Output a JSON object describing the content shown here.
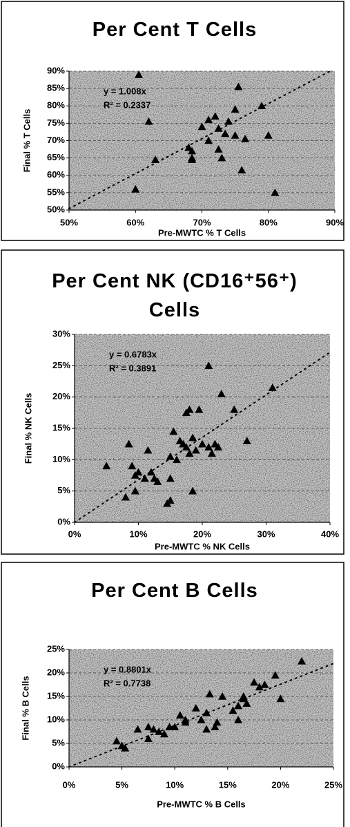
{
  "chart_data": [
    {
      "type": "scatter",
      "title": "Per Cent T Cells",
      "xlabel": "Pre-MWTC % T Cells",
      "ylabel": "Final % T Cells",
      "color": "#000000",
      "grid": true,
      "x": [
        60.5,
        62,
        63,
        60,
        68,
        68.5,
        68.5,
        68.5,
        70,
        71,
        71,
        72,
        72.5,
        72.5,
        73,
        73.5,
        74,
        75,
        75,
        75.5,
        76,
        76.5,
        79,
        80,
        81
      ],
      "values": [
        89,
        75.5,
        64.5,
        56,
        68,
        67,
        65,
        64.5,
        74,
        76,
        70,
        77,
        73.5,
        67.5,
        65,
        72,
        75.5,
        79,
        71.5,
        85.5,
        61.5,
        70.5,
        80,
        71.5,
        55
      ],
      "trendline": {
        "slope": 1.008,
        "label": "y = 1.008x",
        "r2_label": "R² = 0.2337"
      },
      "xlim": [
        50,
        90
      ],
      "ylim": [
        50,
        90
      ],
      "xticks": [
        {
          "value": 50,
          "label": "50%"
        },
        {
          "value": 60,
          "label": "60%"
        },
        {
          "value": 70,
          "label": "70%"
        },
        {
          "value": 80,
          "label": "80%"
        },
        {
          "value": 90,
          "label": "90%"
        }
      ],
      "yticks": [
        {
          "value": 50,
          "label": "50%"
        },
        {
          "value": 55,
          "label": "55%"
        },
        {
          "value": 60,
          "label": "60%"
        },
        {
          "value": 65,
          "label": "65%"
        },
        {
          "value": 70,
          "label": "70%"
        },
        {
          "value": 75,
          "label": "75%"
        },
        {
          "value": 80,
          "label": "80%"
        },
        {
          "value": 85,
          "label": "85%"
        },
        {
          "value": 90,
          "label": "90%"
        }
      ]
    },
    {
      "type": "scatter",
      "title": "Per Cent NK (CD16⁺56⁺) Cells",
      "xlabel": "Pre-MWTC % NK Cells",
      "ylabel": "Final % NK Cells",
      "color": "#000000",
      "grid": true,
      "x": [
        5,
        8,
        8.5,
        9,
        9.5,
        9.5,
        10,
        11,
        11.5,
        12,
        12.5,
        13,
        14.5,
        15,
        15,
        15,
        15.5,
        16,
        16.5,
        17,
        17.5,
        17.5,
        18,
        18,
        18.5,
        18.5,
        19,
        19.5,
        20,
        21,
        21,
        21.5,
        22,
        22.5,
        23,
        25,
        27,
        31
      ],
      "values": [
        9,
        4,
        12.5,
        9,
        7.5,
        5,
        8,
        7,
        11.5,
        8,
        7,
        6.5,
        3,
        3.5,
        7,
        10.5,
        14.5,
        10,
        13,
        12.5,
        12,
        17.5,
        18,
        11,
        5,
        13.5,
        11.5,
        18,
        12.5,
        25,
        12,
        11,
        12.5,
        12,
        20.5,
        18,
        13,
        21.5
      ],
      "trendline": {
        "slope": 0.6783,
        "label": "y = 0.6783x",
        "r2_label": "R² = 0.3891"
      },
      "xlim": [
        0,
        40
      ],
      "ylim": [
        0,
        30
      ],
      "xticks": [
        {
          "value": 0,
          "label": "0%"
        },
        {
          "value": 10,
          "label": "10%"
        },
        {
          "value": 20,
          "label": "20%"
        },
        {
          "value": 30,
          "label": "30%"
        },
        {
          "value": 40,
          "label": "40%"
        }
      ],
      "yticks": [
        {
          "value": 0,
          "label": "0%"
        },
        {
          "value": 5,
          "label": "5%"
        },
        {
          "value": 10,
          "label": "10%"
        },
        {
          "value": 15,
          "label": "15%"
        },
        {
          "value": 20,
          "label": "20%"
        },
        {
          "value": 25,
          "label": "25%"
        },
        {
          "value": 30,
          "label": "30%"
        }
      ]
    },
    {
      "type": "scatter",
      "title": "Per Cent B Cells",
      "xlabel": "Pre-MWTC % B Cells",
      "ylabel": "Final % B Cells",
      "color": "#000000",
      "grid": true,
      "x": [
        4.5,
        5,
        5.3,
        6.5,
        7.5,
        7.5,
        8,
        8.5,
        9,
        9.5,
        10,
        10.5,
        11,
        11,
        12,
        12.5,
        13,
        13,
        13.3,
        13.8,
        14,
        14.5,
        15.5,
        16,
        16,
        16.5,
        16.5,
        16.8,
        17.5,
        18,
        18.5,
        19.5,
        20,
        22
      ],
      "values": [
        5.5,
        4.5,
        4,
        8,
        8.5,
        6,
        8,
        7.5,
        7,
        8.5,
        8.5,
        11,
        10,
        9.5,
        12.5,
        10,
        11.5,
        8,
        15.5,
        8.5,
        9.5,
        15,
        12,
        13,
        10,
        14.5,
        15,
        13.5,
        18,
        17,
        17.5,
        19.5,
        14.5,
        22.5
      ],
      "trendline": {
        "slope": 0.8801,
        "label": "y = 0.8801x",
        "r2_label": "R² = 0.7738"
      },
      "xlim": [
        0,
        25
      ],
      "ylim": [
        0,
        25
      ],
      "xticks": [
        {
          "value": 0,
          "label": "0%"
        },
        {
          "value": 5,
          "label": "5%"
        },
        {
          "value": 10,
          "label": "10%"
        },
        {
          "value": 15,
          "label": "15%"
        },
        {
          "value": 20,
          "label": "20%"
        },
        {
          "value": 25,
          "label": "25%"
        }
      ],
      "yticks": [
        {
          "value": 0,
          "label": "0%"
        },
        {
          "value": 5,
          "label": "5%"
        },
        {
          "value": 10,
          "label": "10%"
        },
        {
          "value": 15,
          "label": "15%"
        },
        {
          "value": 20,
          "label": "20%"
        },
        {
          "value": 25,
          "label": "25%"
        }
      ]
    }
  ]
}
